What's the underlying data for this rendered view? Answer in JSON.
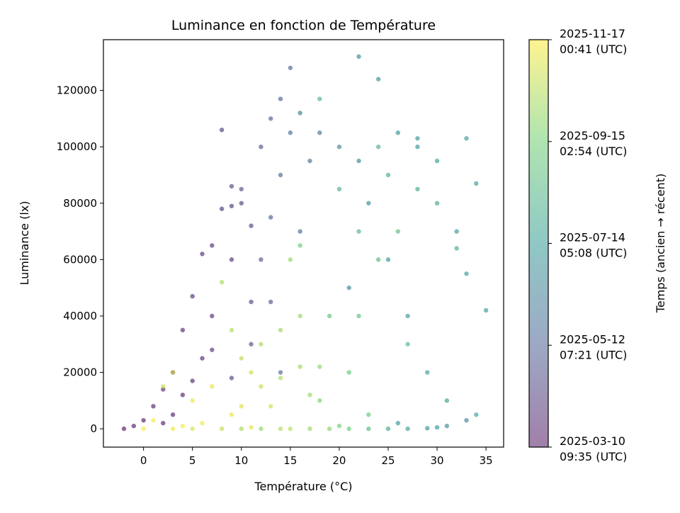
{
  "chart_data": {
    "type": "scatter",
    "title": "Luminance en fonction de Température",
    "xlabel": "Température (°C)",
    "ylabel": "Luminance (lx)",
    "xlim": [
      -4.1,
      36.8
    ],
    "ylim": [
      -6500,
      138000
    ],
    "x_ticks": [
      0,
      5,
      10,
      15,
      20,
      25,
      30,
      35
    ],
    "y_ticks": [
      0,
      20000,
      40000,
      60000,
      80000,
      100000,
      120000
    ],
    "grid": false,
    "colormap": "viridis",
    "point_alpha": 0.6,
    "colorbar": {
      "label": "Temps (ancien → récent)",
      "min": "2025-03-10T09:35",
      "max": "2025-11-17T00:41",
      "ticks": [
        {
          "line1": "2025-03-10",
          "line2": "09:35 (UTC)",
          "value": "2025-03-10T09:35"
        },
        {
          "line1": "2025-05-12",
          "line2": "07:21 (UTC)",
          "value": "2025-05-12T07:21"
        },
        {
          "line1": "2025-07-14",
          "line2": "05:08 (UTC)",
          "value": "2025-07-14T05:08"
        },
        {
          "line1": "2025-09-15",
          "line2": "02:54 (UTC)",
          "value": "2025-09-15T02:54"
        },
        {
          "line1": "2025-11-17",
          "line2": "00:41 (UTC)",
          "value": "2025-11-17T00:41"
        }
      ]
    },
    "points": [
      [
        -2,
        0,
        "2025-03-12"
      ],
      [
        -1,
        1000,
        "2025-03-14"
      ],
      [
        0,
        3000,
        "2025-03-15"
      ],
      [
        1,
        8000,
        "2025-03-18"
      ],
      [
        2,
        14000,
        "2025-03-20"
      ],
      [
        3,
        20000,
        "2025-03-22"
      ],
      [
        4,
        35000,
        "2025-03-25"
      ],
      [
        5,
        47000,
        "2025-03-28"
      ],
      [
        6,
        62000,
        "2025-04-01"
      ],
      [
        7,
        65000,
        "2025-04-03"
      ],
      [
        8,
        78000,
        "2025-04-06"
      ],
      [
        9,
        79000,
        "2025-04-09"
      ],
      [
        10,
        80000,
        "2025-04-12"
      ],
      [
        3,
        5000,
        "2025-03-16"
      ],
      [
        4,
        12000,
        "2025-03-19"
      ],
      [
        6,
        25000,
        "2025-03-24"
      ],
      [
        7,
        40000,
        "2025-03-30"
      ],
      [
        9,
        60000,
        "2025-04-05"
      ],
      [
        11,
        72000,
        "2025-04-15"
      ],
      [
        8,
        106000,
        "2025-04-10"
      ],
      [
        9,
        86000,
        "2025-04-14"
      ],
      [
        2,
        2000,
        "2025-03-21"
      ],
      [
        5,
        17000,
        "2025-03-26"
      ],
      [
        7,
        28000,
        "2025-04-02"
      ],
      [
        9,
        18000,
        "2025-04-18"
      ],
      [
        11,
        45000,
        "2025-04-20"
      ],
      [
        10,
        85000,
        "2025-04-28"
      ],
      [
        12,
        100000,
        "2025-05-03"
      ],
      [
        13,
        110000,
        "2025-05-08"
      ],
      [
        14,
        117000,
        "2025-05-12"
      ],
      [
        15,
        128000,
        "2025-05-15"
      ],
      [
        12,
        60000,
        "2025-05-01"
      ],
      [
        14,
        90000,
        "2025-05-18"
      ],
      [
        16,
        70000,
        "2025-05-22"
      ],
      [
        11,
        30000,
        "2025-04-25"
      ],
      [
        13,
        45000,
        "2025-05-05"
      ],
      [
        15,
        105000,
        "2025-05-25"
      ],
      [
        17,
        95000,
        "2025-05-28"
      ],
      [
        13,
        75000,
        "2025-05-10"
      ],
      [
        18,
        105000,
        "2025-06-02"
      ],
      [
        16,
        112000,
        "2025-06-05"
      ],
      [
        14,
        20000,
        "2025-05-20"
      ],
      [
        20,
        100000,
        "2025-06-20"
      ],
      [
        22,
        132000,
        "2025-06-25"
      ],
      [
        24,
        124000,
        "2025-07-01"
      ],
      [
        26,
        105000,
        "2025-07-05"
      ],
      [
        28,
        100000,
        "2025-07-10"
      ],
      [
        30,
        95000,
        "2025-07-14"
      ],
      [
        33,
        103000,
        "2025-07-18"
      ],
      [
        25,
        60000,
        "2025-07-08"
      ],
      [
        27,
        40000,
        "2025-07-12"
      ],
      [
        29,
        20000,
        "2025-07-16"
      ],
      [
        31,
        10000,
        "2025-07-20"
      ],
      [
        34,
        5000,
        "2025-07-22"
      ],
      [
        35,
        42000,
        "2025-07-15"
      ],
      [
        32,
        70000,
        "2025-07-11"
      ],
      [
        23,
        80000,
        "2025-06-28"
      ],
      [
        21,
        50000,
        "2025-06-22"
      ],
      [
        26,
        2000,
        "2025-07-06"
      ],
      [
        30,
        500,
        "2025-07-13"
      ],
      [
        34,
        87000,
        "2025-07-19"
      ],
      [
        33,
        55000,
        "2025-07-17"
      ],
      [
        28,
        103000,
        "2025-07-09"
      ],
      [
        22,
        95000,
        "2025-06-18"
      ],
      [
        20,
        85000,
        "2025-08-10"
      ],
      [
        22,
        70000,
        "2025-08-15"
      ],
      [
        24,
        60000,
        "2025-08-20"
      ],
      [
        19,
        40000,
        "2025-09-01"
      ],
      [
        21,
        20000,
        "2025-09-05"
      ],
      [
        23,
        5000,
        "2025-09-08"
      ],
      [
        18,
        117000,
        "2025-08-12"
      ],
      [
        16,
        65000,
        "2025-09-12"
      ],
      [
        25,
        90000,
        "2025-08-05"
      ],
      [
        28,
        85000,
        "2025-08-01"
      ],
      [
        27,
        30000,
        "2025-08-18"
      ],
      [
        20,
        1000,
        "2025-09-15"
      ],
      [
        26,
        70000,
        "2025-08-25"
      ],
      [
        30,
        80000,
        "2025-07-30"
      ],
      [
        24,
        100000,
        "2025-08-08"
      ],
      [
        18,
        10000,
        "2025-09-20"
      ],
      [
        22,
        40000,
        "2025-08-28"
      ],
      [
        32,
        64000,
        "2025-08-03"
      ],
      [
        2,
        15000,
        "2025-10-25"
      ],
      [
        3,
        20000,
        "2025-11-01"
      ],
      [
        5,
        10000,
        "2025-11-10"
      ],
      [
        8,
        52000,
        "2025-10-10"
      ],
      [
        9,
        35000,
        "2025-10-15"
      ],
      [
        10,
        25000,
        "2025-10-20"
      ],
      [
        12,
        30000,
        "2025-10-12"
      ],
      [
        14,
        35000,
        "2025-10-05"
      ],
      [
        15,
        60000,
        "2025-10-02"
      ],
      [
        16,
        22000,
        "2025-10-08"
      ],
      [
        18,
        22000,
        "2025-10-01"
      ],
      [
        6,
        2000,
        "2025-11-12"
      ],
      [
        11,
        500,
        "2025-11-05"
      ],
      [
        13,
        8000,
        "2025-10-28"
      ],
      [
        17,
        12000,
        "2025-10-06"
      ],
      [
        1,
        3000,
        "2025-11-15"
      ],
      [
        4,
        1000,
        "2025-11-14"
      ],
      [
        7,
        15000,
        "2025-11-08"
      ],
      [
        15,
        0,
        "2025-10-18"
      ],
      [
        12,
        15000,
        "2025-10-22"
      ],
      [
        10,
        8000,
        "2025-11-02"
      ],
      [
        14,
        18000,
        "2025-10-14"
      ],
      [
        16,
        40000,
        "2025-10-04"
      ],
      [
        11,
        20000,
        "2025-10-26"
      ],
      [
        9,
        5000,
        "2025-11-06"
      ],
      [
        0,
        0,
        "2025-11-16"
      ],
      [
        3,
        0,
        "2025-11-10"
      ],
      [
        5,
        0,
        "2025-11-01"
      ],
      [
        8,
        0,
        "2025-10-20"
      ],
      [
        10,
        0,
        "2025-10-10"
      ],
      [
        12,
        0,
        "2025-10-01"
      ],
      [
        14,
        0,
        "2025-10-15"
      ],
      [
        17,
        0,
        "2025-10-05"
      ],
      [
        19,
        0,
        "2025-09-25"
      ],
      [
        21,
        0,
        "2025-09-10"
      ],
      [
        23,
        0,
        "2025-08-20"
      ],
      [
        25,
        0,
        "2025-08-01"
      ],
      [
        27,
        0,
        "2025-07-20"
      ],
      [
        29,
        200,
        "2025-07-05"
      ],
      [
        31,
        1000,
        "2025-06-25"
      ],
      [
        33,
        3000,
        "2025-06-20"
      ]
    ]
  }
}
